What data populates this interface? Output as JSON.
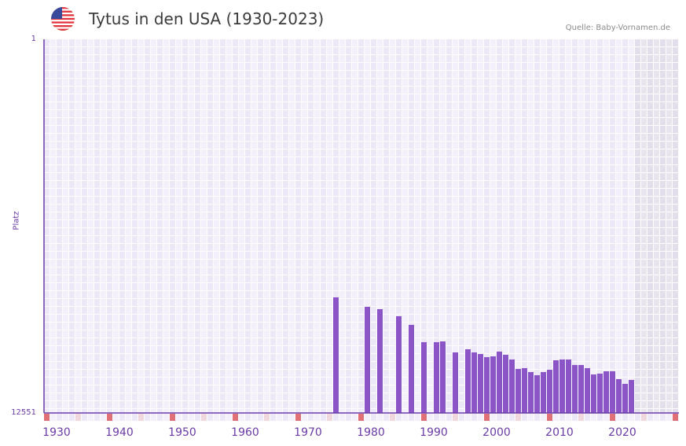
{
  "header": {
    "title": "Tytus in den USA (1930-2023)",
    "source": "Quelle: Baby-Vornamen.de",
    "flag_icon": "us-flag-icon"
  },
  "axes": {
    "ylabel": "Platz",
    "ytick_top": "1",
    "ytick_bottom": "12551",
    "xticks": [
      "1930",
      "1940",
      "1950",
      "1960",
      "1970",
      "1980",
      "1990",
      "2000",
      "2010",
      "2020"
    ]
  },
  "colors": {
    "bar": "#8b55c8",
    "axis": "#6a3aa8",
    "grid_a": "#ede8f8",
    "grid_b": "#f3f0fc",
    "future_a": "#e2deec",
    "future_b": "#e8e5ef",
    "decade_marker": "#e07078",
    "half_decade_marker": "#f2d6de"
  },
  "chart_data": {
    "type": "bar",
    "title": "Tytus in den USA (1930-2023)",
    "xlabel": "",
    "ylabel": "Platz",
    "ylim": [
      12551,
      1
    ],
    "y_inverted": true,
    "x_range": [
      1930,
      2030
    ],
    "grid": true,
    "source": "Quelle: Baby-Vornamen.de",
    "categories": [
      1976,
      1981,
      1983,
      1986,
      1988,
      1990,
      1992,
      1993,
      1995,
      1997,
      1998,
      1999,
      2000,
      2001,
      2002,
      2003,
      2004,
      2005,
      2006,
      2007,
      2008,
      2009,
      2010,
      2011,
      2012,
      2013,
      2014,
      2015,
      2016,
      2017,
      2018,
      2019,
      2020,
      2021,
      2022,
      2023
    ],
    "values": [
      8667,
      8984,
      9063,
      9301,
      9592,
      10173,
      10173,
      10147,
      10517,
      10411,
      10517,
      10570,
      10676,
      10649,
      10490,
      10596,
      10755,
      11072,
      11045,
      11177,
      11283,
      11177,
      11098,
      10781,
      10755,
      10755,
      10940,
      10940,
      11045,
      11257,
      11230,
      11151,
      11151,
      11415,
      11573,
      11441
    ]
  }
}
